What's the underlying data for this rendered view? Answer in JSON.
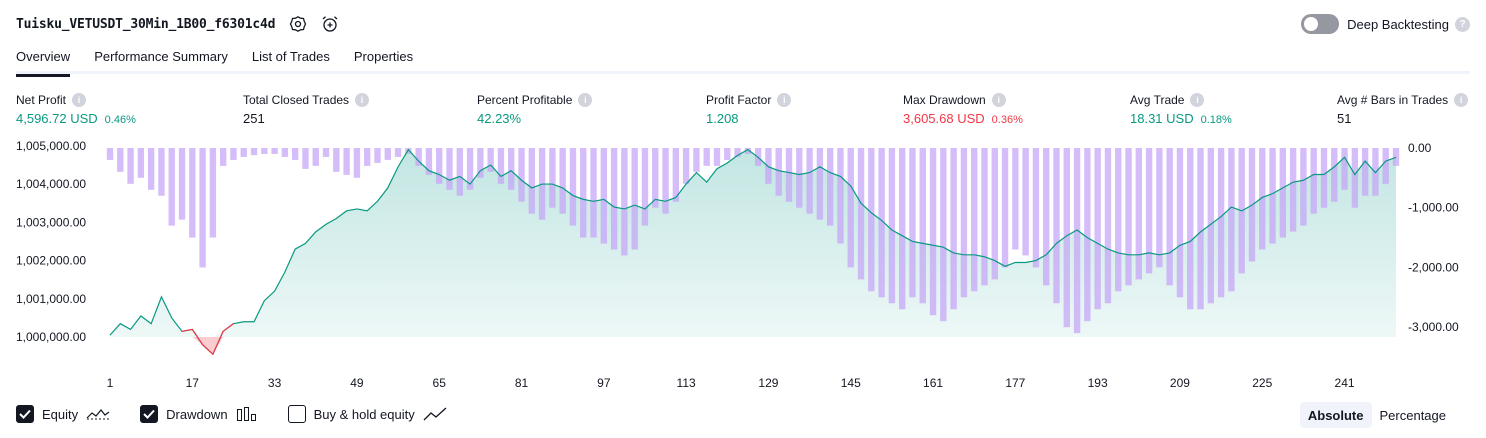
{
  "header": {
    "strategy_name": "Tuisku_VETUSDT_30Min_1B00_f6301c4d",
    "settings_icon": "gear-icon",
    "alert_icon": "alarm-clock-plus-icon",
    "deep_backtesting_label": "Deep Backtesting",
    "deep_backtesting_on": false,
    "help_glyph": "?"
  },
  "tabs": [
    {
      "label": "Overview",
      "active": true
    },
    {
      "label": "Performance Summary",
      "active": false
    },
    {
      "label": "List of Trades",
      "active": false
    },
    {
      "label": "Properties",
      "active": false
    }
  ],
  "stats": {
    "net_profit": {
      "label": "Net Profit",
      "value": "4,596.72 USD",
      "pct": "0.46%"
    },
    "total_closed_trades": {
      "label": "Total Closed Trades",
      "value": "251"
    },
    "percent_profitable": {
      "label": "Percent Profitable",
      "value": "42.23%"
    },
    "profit_factor": {
      "label": "Profit Factor",
      "value": "1.208"
    },
    "max_drawdown": {
      "label": "Max Drawdown",
      "value": "3,605.68 USD",
      "pct": "0.36%"
    },
    "avg_trade": {
      "label": "Avg Trade",
      "value": "18.31 USD",
      "pct": "0.18%"
    },
    "avg_bars": {
      "label": "Avg # Bars in Trades",
      "value": "51"
    }
  },
  "chart_data": {
    "type": "line",
    "series": [
      {
        "name": "Equity",
        "type": "area",
        "color": "#089981",
        "x": [
          1,
          3,
          5,
          7,
          9,
          11,
          13,
          15,
          17,
          19,
          21,
          23,
          25,
          27,
          29,
          31,
          33,
          35,
          37,
          39,
          41,
          43,
          45,
          47,
          49,
          51,
          53,
          55,
          57,
          59,
          61,
          63,
          65,
          67,
          69,
          71,
          73,
          75,
          77,
          79,
          81,
          83,
          85,
          87,
          89,
          91,
          93,
          95,
          97,
          99,
          101,
          103,
          105,
          107,
          109,
          111,
          113,
          115,
          117,
          119,
          121,
          123,
          125,
          127,
          129,
          131,
          133,
          135,
          137,
          139,
          141,
          143,
          145,
          147,
          149,
          151,
          153,
          155,
          157,
          159,
          161,
          163,
          165,
          167,
          169,
          171,
          173,
          175,
          177,
          179,
          181,
          183,
          185,
          187,
          189,
          191,
          193,
          195,
          197,
          199,
          201,
          203,
          205,
          207,
          209,
          211,
          213,
          215,
          217,
          219,
          221,
          223,
          225,
          227,
          229,
          231,
          233,
          235,
          237,
          239,
          241,
          243,
          245,
          247,
          249,
          251
        ],
        "y": [
          1000050,
          1000350,
          1000200,
          1000550,
          1000350,
          1001050,
          1000500,
          1000150,
          1000200,
          999800,
          999550,
          1000150,
          1000350,
          1000400,
          1000400,
          1000950,
          1001200,
          1001700,
          1002300,
          1002450,
          1002750,
          1002950,
          1003100,
          1003300,
          1003350,
          1003300,
          1003550,
          1003900,
          1004450,
          1004900,
          1004600,
          1004350,
          1004250,
          1004100,
          1004200,
          1004000,
          1004350,
          1004500,
          1004200,
          1004350,
          1004100,
          1003900,
          1004000,
          1004000,
          1003900,
          1003700,
          1003600,
          1003550,
          1003600,
          1003400,
          1003350,
          1003450,
          1003350,
          1003600,
          1003550,
          1003650,
          1004000,
          1004300,
          1004050,
          1004400,
          1004550,
          1004750,
          1004900,
          1004700,
          1004450,
          1004350,
          1004300,
          1004250,
          1004300,
          1004450,
          1004300,
          1004200,
          1003950,
          1003500,
          1003250,
          1003050,
          1002800,
          1002650,
          1002500,
          1002450,
          1002400,
          1002350,
          1002200,
          1002150,
          1002150,
          1002100,
          1002000,
          1001850,
          1001950,
          1001950,
          1002000,
          1002150,
          1002450,
          1002650,
          1002800,
          1002600,
          1002450,
          1002300,
          1002200,
          1002150,
          1002150,
          1002200,
          1002150,
          1002200,
          1002400,
          1002500,
          1002750,
          1002950,
          1003150,
          1003400,
          1003300,
          1003450,
          1003650,
          1003750,
          1003900,
          1004050,
          1004100,
          1004250,
          1004250,
          1004450,
          1004700,
          1004250,
          1004600,
          1004300,
          1004600,
          1004700
        ]
      },
      {
        "name": "Drawdown",
        "type": "bar",
        "color": "#c5a3f7",
        "x": [
          1,
          3,
          5,
          7,
          9,
          11,
          13,
          15,
          17,
          19,
          21,
          23,
          25,
          27,
          29,
          31,
          33,
          35,
          37,
          39,
          41,
          43,
          45,
          47,
          49,
          51,
          53,
          55,
          57,
          59,
          61,
          63,
          65,
          67,
          69,
          71,
          73,
          75,
          77,
          79,
          81,
          83,
          85,
          87,
          89,
          91,
          93,
          95,
          97,
          99,
          101,
          103,
          105,
          107,
          109,
          111,
          113,
          115,
          117,
          119,
          121,
          123,
          125,
          127,
          129,
          131,
          133,
          135,
          137,
          139,
          141,
          143,
          145,
          147,
          149,
          151,
          153,
          155,
          157,
          159,
          161,
          163,
          165,
          167,
          169,
          171,
          173,
          175,
          177,
          179,
          181,
          183,
          185,
          187,
          189,
          191,
          193,
          195,
          197,
          199,
          201,
          203,
          205,
          207,
          209,
          211,
          213,
          215,
          217,
          219,
          221,
          223,
          225,
          227,
          229,
          231,
          233,
          235,
          237,
          239,
          241,
          243,
          245,
          247,
          249,
          251
        ],
        "y": [
          -200,
          -400,
          -600,
          -500,
          -700,
          -800,
          -1300,
          -1200,
          -1500,
          -2000,
          -1500,
          -300,
          -200,
          -150,
          -120,
          -100,
          -100,
          -150,
          -200,
          -350,
          -300,
          -150,
          -400,
          -450,
          -500,
          -300,
          -250,
          -200,
          -150,
          -100,
          -300,
          -450,
          -600,
          -700,
          -800,
          -700,
          -500,
          -400,
          -600,
          -700,
          -900,
          -1100,
          -1200,
          -1000,
          -1100,
          -1300,
          -1500,
          -1500,
          -1600,
          -1700,
          -1800,
          -1700,
          -1300,
          -1000,
          -1100,
          -900,
          -600,
          -400,
          -300,
          -300,
          -200,
          -150,
          -100,
          -300,
          -600,
          -800,
          -900,
          -1000,
          -1100,
          -1200,
          -1300,
          -1600,
          -2000,
          -2200,
          -2400,
          -2500,
          -2600,
          -2700,
          -2500,
          -2600,
          -2800,
          -2900,
          -2700,
          -2500,
          -2400,
          -2300,
          -2200,
          -2000,
          -1700,
          -1800,
          -2000,
          -2300,
          -2600,
          -3000,
          -3100,
          -2900,
          -2700,
          -2600,
          -2400,
          -2300,
          -2200,
          -2100,
          -2000,
          -2300,
          -2500,
          -2700,
          -2700,
          -2600,
          -2500,
          -2400,
          -2100,
          -1900,
          -1700,
          -1600,
          -1500,
          -1400,
          -1300,
          -1100,
          -1000,
          -900,
          -700,
          -1000,
          -800,
          -800,
          -600,
          -300
        ]
      }
    ],
    "left_axis_ticks": [
      "1,005,000.00",
      "1,004,000.00",
      "1,003,000.00",
      "1,002,000.00",
      "1,001,000.00",
      "1,000,000.00"
    ],
    "left_ylim": [
      999400,
      1005100
    ],
    "right_axis_ticks": [
      "0.00",
      "-1,000.00",
      "-2,000.00",
      "-3,000.00"
    ],
    "right_ylim": [
      -3550,
      100
    ],
    "x_ticks": [
      "1",
      "17",
      "33",
      "49",
      "65",
      "81",
      "97",
      "113",
      "129",
      "145",
      "161",
      "177",
      "193",
      "209",
      "225",
      "241"
    ],
    "xlim": [
      1,
      251
    ]
  },
  "footer": {
    "equity": {
      "label": "Equity",
      "checked": true,
      "icon": "equity-line-icon"
    },
    "drawdown": {
      "label": "Drawdown",
      "checked": true,
      "icon": "drawdown-bars-icon"
    },
    "buy_hold": {
      "label": "Buy & hold equity",
      "checked": false,
      "icon": "buy-hold-line-icon"
    },
    "absolute_label": "Absolute",
    "percentage_label": "Percentage",
    "active_mode": "absolute"
  }
}
